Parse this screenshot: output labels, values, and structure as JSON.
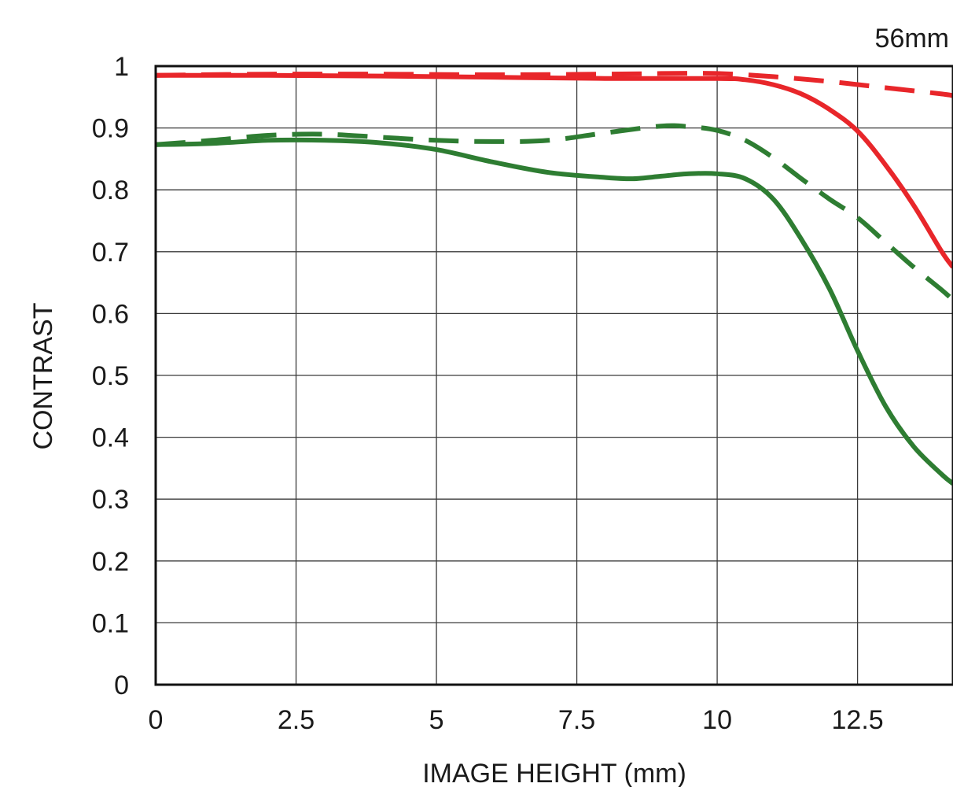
{
  "chart_data": {
    "type": "line",
    "title": "56mm",
    "xlabel": "IMAGE HEIGHT (mm)",
    "ylabel": "CONTRAST",
    "xlim": [
      0,
      14.2
    ],
    "ylim": [
      0,
      1
    ],
    "xticks": [
      0,
      2.5,
      5,
      7.5,
      10,
      12.5
    ],
    "xtick_labels": [
      "0",
      "2.5",
      "5",
      "7.5",
      "10",
      "12.5"
    ],
    "yticks": [
      0,
      0.1,
      0.2,
      0.3,
      0.4,
      0.5,
      0.6,
      0.7,
      0.8,
      0.9,
      1
    ],
    "ytick_labels": [
      "0",
      "0.1",
      "0.2",
      "0.3",
      "0.4",
      "0.5",
      "0.6",
      "0.7",
      "0.8",
      "0.9",
      "1"
    ],
    "grid": true,
    "legend": "none",
    "series": [
      {
        "color": "#e8262a",
        "style": "solid",
        "x": [
          0,
          2,
          4,
          6,
          8,
          10,
          10.5,
          11,
          11.5,
          12,
          12.5,
          13,
          13.5,
          14,
          14.2
        ],
        "y": [
          0.985,
          0.985,
          0.984,
          0.982,
          0.98,
          0.98,
          0.978,
          0.97,
          0.955,
          0.93,
          0.895,
          0.84,
          0.775,
          0.7,
          0.675
        ]
      },
      {
        "color": "#e8262a",
        "style": "dashed",
        "x": [
          0,
          2,
          4,
          6,
          8,
          9,
          10,
          11,
          12,
          13,
          14,
          14.2
        ],
        "y": [
          0.985,
          0.987,
          0.987,
          0.986,
          0.987,
          0.988,
          0.988,
          0.983,
          0.975,
          0.965,
          0.955,
          0.952
        ]
      },
      {
        "color": "#2e7d32",
        "style": "solid",
        "x": [
          0,
          1,
          2,
          3,
          4,
          5,
          6,
          7,
          8,
          8.5,
          9,
          9.5,
          10,
          10.5,
          11,
          11.5,
          12,
          12.5,
          13,
          13.5,
          14,
          14.2
        ],
        "y": [
          0.873,
          0.875,
          0.88,
          0.88,
          0.876,
          0.865,
          0.845,
          0.828,
          0.82,
          0.818,
          0.822,
          0.826,
          0.826,
          0.818,
          0.785,
          0.72,
          0.64,
          0.54,
          0.45,
          0.385,
          0.34,
          0.325
        ]
      },
      {
        "color": "#2e7d32",
        "style": "dashed",
        "x": [
          0,
          1,
          2,
          3,
          4,
          5,
          6,
          7,
          8,
          9,
          9.5,
          10,
          10.5,
          11,
          11.5,
          12,
          12.5,
          13,
          13.5,
          14,
          14.2
        ],
        "y": [
          0.873,
          0.88,
          0.888,
          0.89,
          0.885,
          0.88,
          0.878,
          0.88,
          0.892,
          0.903,
          0.902,
          0.896,
          0.88,
          0.852,
          0.818,
          0.785,
          0.755,
          0.715,
          0.675,
          0.638,
          0.622
        ]
      }
    ]
  }
}
